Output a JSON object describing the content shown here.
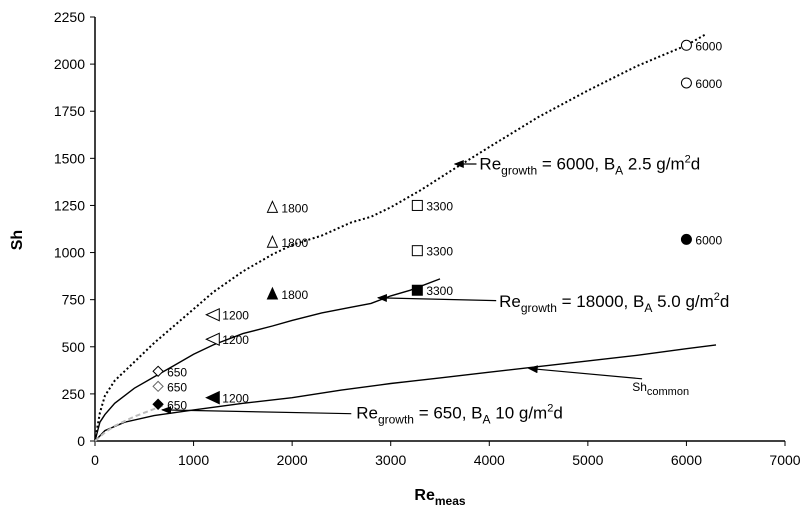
{
  "chart_data": {
    "type": "scatter",
    "title": "",
    "xlabel": "Re",
    "xlabel_sub": "meas",
    "ylabel": "Sh",
    "xlim": [
      0,
      7000
    ],
    "ylim": [
      0,
      2250
    ],
    "x_ticks": [
      "0",
      "1000",
      "2000",
      "3000",
      "4000",
      "5000",
      "6000",
      "7000"
    ],
    "y_ticks": [
      "0",
      "250",
      "500",
      "750",
      "1000",
      "1250",
      "1500",
      "1750",
      "2000",
      "2250"
    ],
    "grid": false,
    "lines": [
      {
        "style": "dotted",
        "color": "#000000",
        "x": [
          0,
          50,
          100,
          200,
          400,
          600,
          800,
          1000,
          1200,
          1500,
          1800,
          2000,
          2300,
          2600,
          2800,
          3000,
          3300,
          3600,
          4000,
          4500,
          5000,
          5500,
          6000,
          6200
        ],
        "y": [
          0,
          150,
          240,
          320,
          420,
          520,
          610,
          700,
          790,
          900,
          990,
          1040,
          1090,
          1160,
          1190,
          1240,
          1330,
          1430,
          1560,
          1720,
          1860,
          1990,
          2100,
          2160
        ]
      },
      {
        "style": "solid",
        "color": "#000000",
        "x": [
          0,
          50,
          100,
          200,
          400,
          600,
          800,
          1000,
          1200,
          1500,
          1800,
          2000,
          2300,
          2600,
          2800,
          3000,
          3200,
          3500
        ],
        "y": [
          0,
          100,
          140,
          200,
          280,
          340,
          400,
          460,
          510,
          570,
          610,
          640,
          680,
          710,
          730,
          770,
          800,
          860
        ]
      },
      {
        "style": "solid",
        "color": "#000000",
        "x": [
          0,
          100,
          300,
          600,
          1000,
          1500,
          2000,
          2500,
          3000,
          3500,
          4000,
          4500,
          5000,
          5500,
          6000,
          6300
        ],
        "y": [
          0,
          55,
          100,
          135,
          165,
          200,
          230,
          270,
          305,
          335,
          365,
          395,
          425,
          455,
          490,
          510
        ]
      },
      {
        "style": "dashed",
        "color": "#bbbbbb",
        "x": [
          0,
          100,
          200,
          400,
          600,
          700
        ],
        "y": [
          0,
          45,
          80,
          130,
          170,
          190
        ]
      }
    ],
    "points": [
      {
        "marker": "circle-open",
        "x": 6000,
        "y": 2100,
        "label": "6000"
      },
      {
        "marker": "circle-open",
        "x": 6000,
        "y": 1900,
        "label": "6000"
      },
      {
        "marker": "circle-filled",
        "x": 6000,
        "y": 1070,
        "label": "6000"
      },
      {
        "marker": "square-open",
        "x": 3270,
        "y": 1250,
        "label": "3300"
      },
      {
        "marker": "square-open",
        "x": 3270,
        "y": 1010,
        "label": "3300"
      },
      {
        "marker": "square-filled",
        "x": 3270,
        "y": 800,
        "label": "3300"
      },
      {
        "marker": "triangle-up-open",
        "x": 1800,
        "y": 1240,
        "label": "1800"
      },
      {
        "marker": "triangle-up-open",
        "x": 1800,
        "y": 1055,
        "label": "1800"
      },
      {
        "marker": "triangle-up-filled",
        "x": 1800,
        "y": 780,
        "label": "1800"
      },
      {
        "marker": "triangle-left-open",
        "x": 1200,
        "y": 670,
        "label": "1200"
      },
      {
        "marker": "triangle-left-open",
        "x": 1200,
        "y": 540,
        "label": "1200"
      },
      {
        "marker": "triangle-left-filled",
        "x": 1200,
        "y": 230,
        "label": "1200"
      },
      {
        "marker": "diamond-open",
        "x": 640,
        "y": 370,
        "label": "650"
      },
      {
        "marker": "diamond-open-gray",
        "x": 640,
        "y": 290,
        "label": "650"
      },
      {
        "marker": "diamond-filled",
        "x": 640,
        "y": 195,
        "label": "650"
      }
    ],
    "annotations": [
      {
        "id": "a6000",
        "pre": "Re",
        "sub": "growth",
        "mid": " = 6000, B",
        "sub2": "A",
        "post": " 2.5 g/m",
        "sup": "2",
        "end": "d",
        "text_x": 3900,
        "text_y": 1440,
        "arrow_from_x": 3870,
        "arrow_from_y": 1470,
        "arrow_to_x": 3650,
        "arrow_to_y": 1470
      },
      {
        "id": "a18000",
        "pre": "Re",
        "sub": "growth",
        "mid": " = 18000, B",
        "sub2": "A",
        "post": " 5.0 g/m",
        "sup": "2",
        "end": "d",
        "text_x": 4100,
        "text_y": 710,
        "arrow_from_x": 4070,
        "arrow_from_y": 745,
        "arrow_to_x": 2870,
        "arrow_to_y": 760
      },
      {
        "id": "a650",
        "pre": "Re",
        "sub": "growth",
        "mid": " = 650, B",
        "sub2": "A",
        "post": " 10 g/m",
        "sup": "2",
        "end": "d",
        "text_x": 2650,
        "text_y": 120,
        "arrow_from_x": 2600,
        "arrow_from_y": 145,
        "arrow_to_x": 680,
        "arrow_to_y": 165
      }
    ],
    "sh_common": {
      "text": "Sh",
      "sub": "common",
      "text_x": 5450,
      "text_y": 265,
      "arrow_from_x": 5550,
      "arrow_from_y": 330,
      "arrow_to_x": 4400,
      "arrow_to_y": 385
    }
  }
}
